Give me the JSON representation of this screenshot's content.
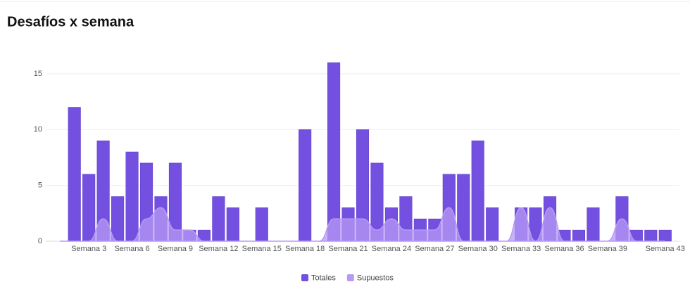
{
  "chart_data": {
    "type": "bar",
    "title": "Desafíos x semana",
    "categories": [
      null,
      null,
      "Semana 3",
      null,
      null,
      "Semana 6",
      null,
      null,
      "Semana 9",
      null,
      null,
      "Semana 12",
      null,
      null,
      "Semana 15",
      null,
      null,
      "Semana 18",
      null,
      null,
      "Semana 21",
      null,
      null,
      "Semana 24",
      null,
      null,
      "Semana 27",
      null,
      null,
      "Semana 30",
      null,
      null,
      "Semana 33",
      null,
      null,
      "Semana 36",
      null,
      null,
      "Semana 39",
      null,
      null,
      null,
      "Semana 43"
    ],
    "series": [
      {
        "name": "Totales",
        "type": "bar",
        "color": "#7350e0",
        "values": [
          0,
          12,
          6,
          9,
          4,
          8,
          7,
          4,
          7,
          1,
          1,
          4,
          3,
          0,
          3,
          0,
          0,
          10,
          0,
          16,
          3,
          10,
          7,
          3,
          4,
          2,
          2,
          6,
          6,
          9,
          3,
          0,
          3,
          3,
          4,
          1,
          1,
          3,
          0,
          4,
          1,
          1,
          1
        ]
      },
      {
        "name": "Supuestos",
        "type": "area",
        "color": "#b79af5",
        "values": [
          0,
          0,
          0,
          2,
          0,
          0,
          2,
          3,
          1,
          1,
          0,
          0,
          0,
          0,
          0,
          0,
          0,
          0,
          0,
          2,
          2,
          2,
          1,
          2,
          1,
          1,
          1,
          3,
          0,
          0,
          0,
          0,
          3,
          0,
          3,
          0,
          0,
          0,
          0,
          2,
          0,
          0,
          0
        ]
      }
    ],
    "ylim": [
      0,
      16
    ],
    "yticks": [
      0,
      5,
      10,
      15
    ],
    "grid": true,
    "legend": "bottom"
  }
}
